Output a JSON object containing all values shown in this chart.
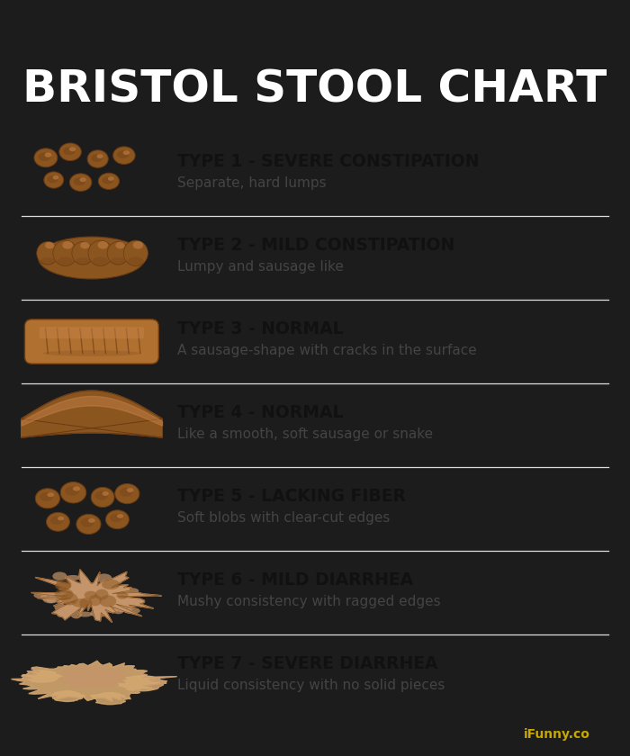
{
  "title": "BRISTOL STOOL CHART",
  "title_bg": "#111111",
  "title_color": "#ffffff",
  "body_bg": "#ffffff",
  "outer_bg": "#1a1a2e",
  "border_color": "#1c1c1c",
  "types": [
    {
      "type_label": "TYPE 1 - SEVERE CONSTIPATION",
      "description": "Separate, hard lumps"
    },
    {
      "type_label": "TYPE 2 - MILD CONSTIPATION",
      "description": "Lumpy and sausage like"
    },
    {
      "type_label": "TYPE 3 - NORMAL",
      "description": "A sausage-shape with cracks in the surface"
    },
    {
      "type_label": "TYPE 4 - NORMAL",
      "description": "Like a smooth, soft sausage or snake"
    },
    {
      "type_label": "TYPE 5 - LACKING FIBER",
      "description": "Soft blobs with clear-cut edges"
    },
    {
      "type_label": "TYPE 6 - MILD DIARRHEA",
      "description": "Mushy consistency with ragged edges"
    },
    {
      "type_label": "TYPE 7 - SEVERE DIARRHEA",
      "description": "Liquid consistency with no solid pieces"
    }
  ],
  "brown_dark": "#6B3A12",
  "brown_mid": "#8B5520",
  "brown_light": "#B07030",
  "brown_highlight": "#C8854A",
  "brown_tan": "#C4956A",
  "brown_pale": "#D4A870",
  "label_fontsize": 13.5,
  "desc_fontsize": 11,
  "title_fontsize": 36,
  "watermark": "iFunny.co",
  "watermark_color": "#c8a800"
}
